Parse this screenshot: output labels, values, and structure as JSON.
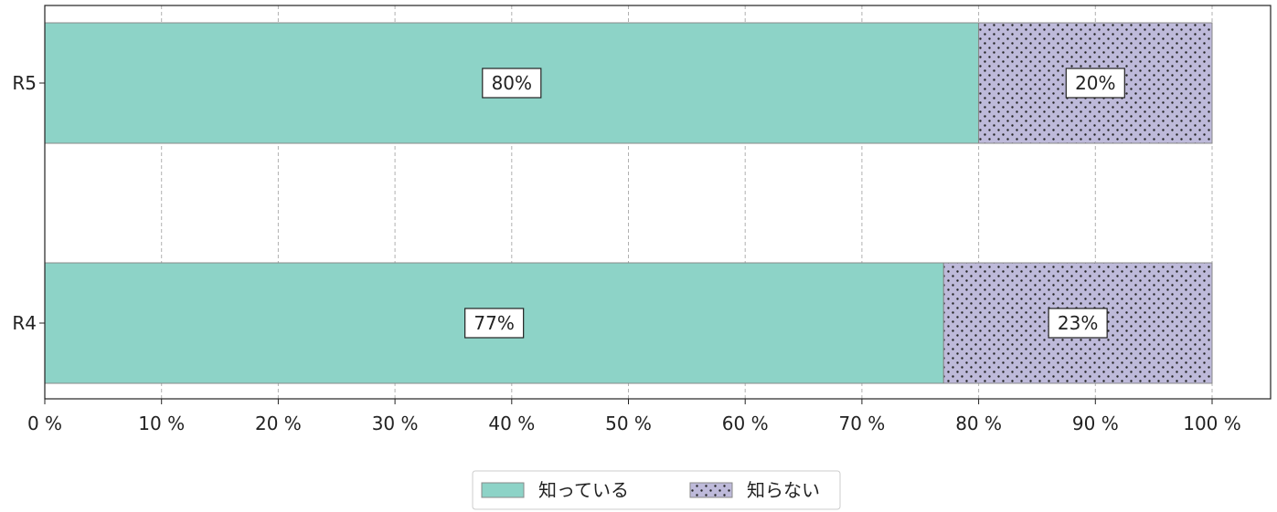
{
  "chart_data": {
    "type": "bar",
    "orientation": "horizontal",
    "stacked": true,
    "categories": [
      "R5",
      "R4"
    ],
    "series": [
      {
        "name": "知っている",
        "values": [
          80,
          77
        ],
        "labels": [
          "80%",
          "77%"
        ],
        "color": "#8dd3c7",
        "pattern": "solid"
      },
      {
        "name": "知らない",
        "values": [
          20,
          23
        ],
        "labels": [
          "20%",
          "23%"
        ],
        "color": "#bebada",
        "pattern": "dots"
      }
    ],
    "xlim": [
      0,
      105
    ],
    "xticks": [
      0,
      10,
      20,
      30,
      40,
      50,
      60,
      70,
      80,
      90,
      100
    ],
    "xtick_labels": [
      "0 %",
      "10 %",
      "20 %",
      "30 %",
      "40 %",
      "50 %",
      "60 %",
      "70 %",
      "80 %",
      "90 %",
      "100 %"
    ],
    "grid": "vertical-dashed",
    "legend": "bottom-center"
  }
}
